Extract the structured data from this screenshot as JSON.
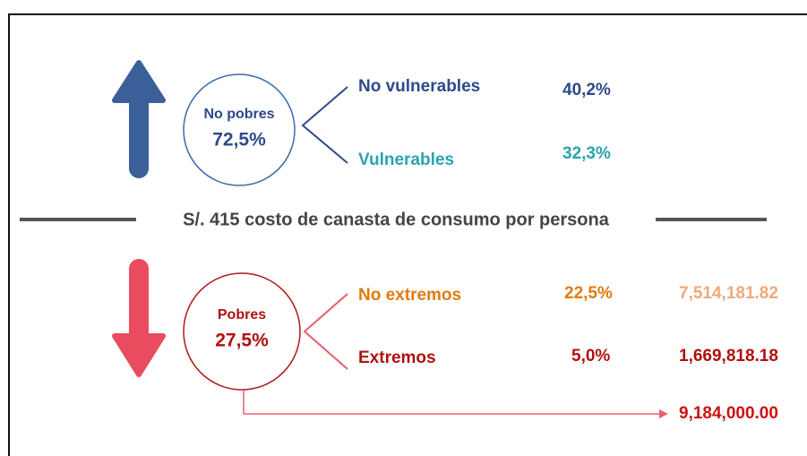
{
  "top": {
    "circle": {
      "label": "No pobres",
      "value": "72,5%"
    },
    "branches": [
      {
        "label": "No vulnerables",
        "value": "40,2%"
      },
      {
        "label": "Vulnerables",
        "value": "32,3%"
      }
    ]
  },
  "divider": "S/. 415 costo de canasta de consumo por persona",
  "bottom": {
    "circle": {
      "label": "Pobres",
      "value": "27,5%"
    },
    "branches": [
      {
        "label": "No extremos",
        "value": "22,5%",
        "amount": "7,514,181.82"
      },
      {
        "label": "Extremos",
        "value": "5,0%",
        "amount": "1,669,818.18"
      }
    ],
    "total": "9,184,000.00"
  }
}
